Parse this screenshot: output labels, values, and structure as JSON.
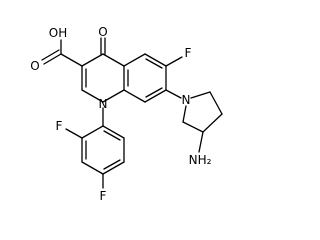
{
  "atom_labels": [
    "OH",
    "O",
    "O",
    "F",
    "N",
    "N",
    "F",
    "F",
    "NH₂"
  ]
}
